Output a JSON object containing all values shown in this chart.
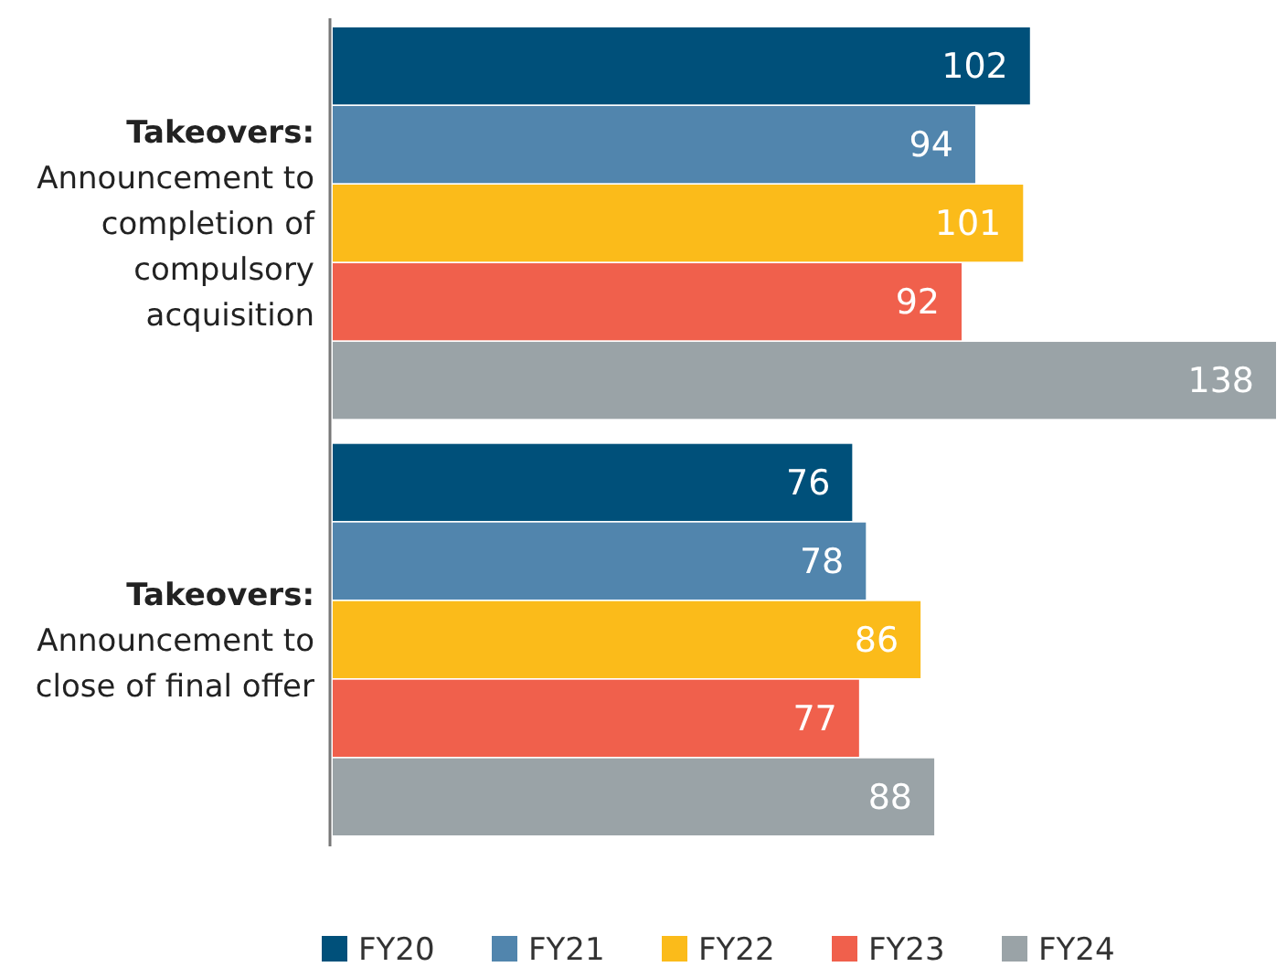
{
  "chart_data": {
    "type": "bar",
    "orientation": "horizontal",
    "categories": [
      "Takeovers:\nAnnouncement to\ncompletion of\ncompulsory\nacquisition",
      "Takeovers:\nAnnouncement to\nclose of final offer"
    ],
    "series": [
      {
        "name": "FY20",
        "color": "#00507a",
        "values": [
          102,
          76
        ]
      },
      {
        "name": "FY21",
        "color": "#5185ad",
        "values": [
          94,
          78
        ]
      },
      {
        "name": "FY22",
        "color": "#fbbb1a",
        "values": [
          101,
          86
        ]
      },
      {
        "name": "FY23",
        "color": "#f0604c",
        "values": [
          92,
          77
        ]
      },
      {
        "name": "FY24",
        "color": "#9aa3a7",
        "values": [
          138,
          88
        ]
      }
    ],
    "data_labels": true,
    "legend": "bottom"
  }
}
